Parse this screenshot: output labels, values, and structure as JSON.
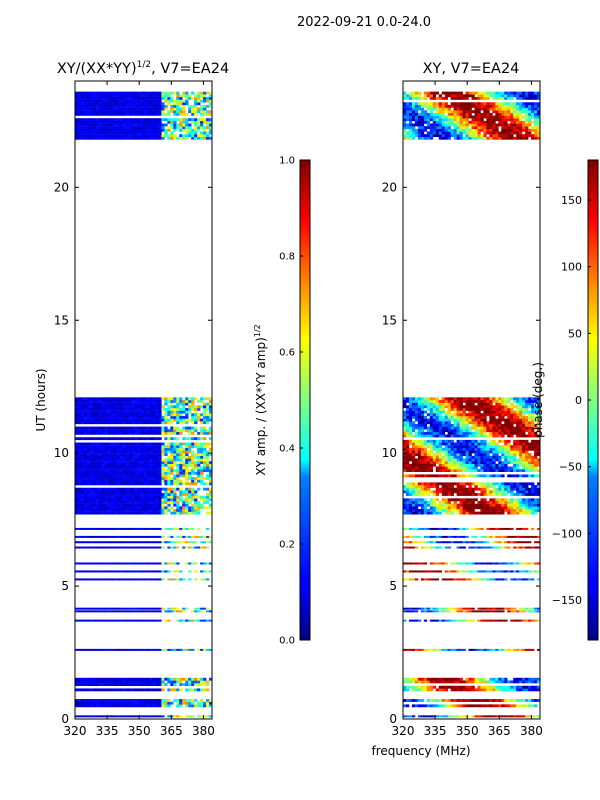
{
  "suptitle": "2022-09-21 0.0-24.0",
  "shared_xlabel": "frequency (MHz)",
  "chart_data": [
    {
      "type": "heatmap",
      "title_prefix": "XY/(XX*YY)",
      "title_sup": "1/2",
      "title_suffix": ", V7=EA24",
      "xlabel": "",
      "ylabel": "UT (hours)",
      "xlim": [
        320,
        384
      ],
      "ylim": [
        0,
        24
      ],
      "x_ticks": [
        320,
        335,
        350,
        365,
        380
      ],
      "y_ticks": [
        0,
        5,
        10,
        15,
        20
      ],
      "colormap": "jet",
      "value_mode": "amplitude",
      "rfi_band_mhz": [
        361,
        384
      ],
      "time_blocks": [
        [
          21.8,
          23.6
        ],
        [
          7.7,
          12.1
        ],
        [
          0.45,
          0.75
        ],
        [
          1.05,
          1.55
        ]
      ],
      "time_lines": [
        0.1,
        2.6,
        3.7,
        4.05,
        4.15,
        5.25,
        5.55,
        5.85,
        6.45,
        6.65,
        6.85,
        7.15
      ],
      "colorbar": {
        "label_prefix": "XY amp. / (XX*YY amp)",
        "label_sup": "1/2",
        "min": 0.0,
        "max": 1.0,
        "ticks": [
          0.0,
          0.2,
          0.4,
          0.6,
          0.8,
          1.0
        ],
        "tick_labels": [
          "0.0",
          "0.2",
          "0.4",
          "0.6",
          "0.8",
          "1.0"
        ]
      }
    },
    {
      "type": "heatmap",
      "title": "XY, V7=EA24",
      "xlabel": "",
      "ylabel": "",
      "xlim": [
        320,
        384
      ],
      "ylim": [
        0,
        24
      ],
      "x_ticks": [
        320,
        335,
        350,
        365,
        380
      ],
      "y_ticks": [
        0,
        5,
        10,
        15,
        20
      ],
      "colormap": "jet",
      "value_mode": "phase",
      "time_blocks": [
        [
          21.8,
          23.6
        ],
        [
          7.7,
          12.1
        ],
        [
          0.45,
          0.75
        ],
        [
          1.05,
          1.55
        ]
      ],
      "time_lines": [
        0.1,
        2.6,
        3.7,
        4.05,
        4.15,
        5.25,
        5.55,
        5.85,
        6.45,
        6.65,
        6.85,
        7.15
      ],
      "colorbar": {
        "label": "phase (deg.)",
        "min": -180,
        "max": 180,
        "ticks": [
          -150,
          -100,
          -50,
          0,
          50,
          100,
          150
        ],
        "tick_labels": [
          "−150",
          "−100",
          "−50",
          "0",
          "50",
          "100",
          "150"
        ]
      }
    }
  ]
}
